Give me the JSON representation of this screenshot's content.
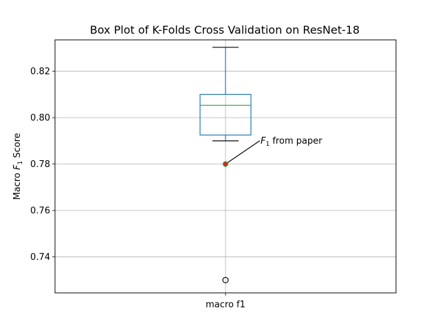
{
  "chart_data": {
    "type": "box",
    "title": "Box Plot of K-Folds Cross Validation on ResNet-18",
    "xlabel": "",
    "ylabel": {
      "prefix": "Macro ",
      "sym": "F",
      "sub": "1",
      "suffix": " Score"
    },
    "categories": [
      "macro f1"
    ],
    "ylim": [
      0.7245,
      0.8335
    ],
    "yticks": [
      0.74,
      0.76,
      0.78,
      0.8,
      0.82
    ],
    "ytick_labels": [
      "0.74",
      "0.76",
      "0.78",
      "0.80",
      "0.82"
    ],
    "grid": true,
    "boxes": [
      {
        "name": "macro f1",
        "whisker_low": 0.79,
        "q1": 0.7925,
        "median": 0.8053,
        "q3": 0.81,
        "whisker_high": 0.8303,
        "outliers": [
          0.73
        ]
      }
    ],
    "reference_point": {
      "value": 0.78,
      "color": "#d62728"
    },
    "annotation": {
      "sym": "F",
      "sub": "1",
      "suffix": " from paper"
    },
    "colors": {
      "box": "#1f77b4",
      "median": "#2ca02c",
      "whisker_cap": "#000000",
      "grid": "#b0b0b0",
      "reference_edge": "#2ca02c"
    }
  }
}
